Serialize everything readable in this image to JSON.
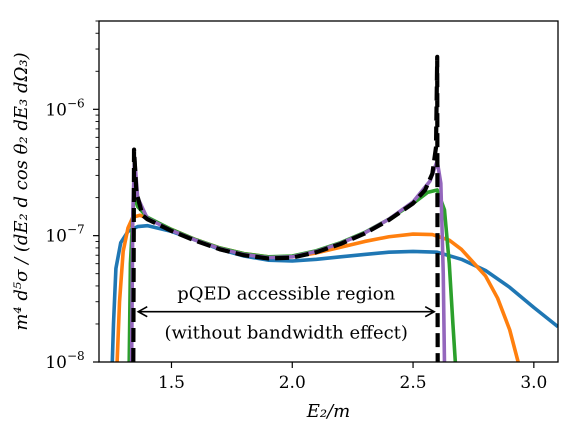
{
  "chart_data": {
    "type": "line",
    "title": "",
    "xlabel": "E₂/m",
    "ylabel": "m⁴ d⁵σ / (dE₂ d cos θ₂ dE₃ dΩ₃)",
    "xlim": [
      1.2,
      3.1
    ],
    "ylim": [
      1e-08,
      5e-06
    ],
    "yscale": "log",
    "grid": false,
    "x_ticks": [
      {
        "value": 1.5,
        "label": "1.5"
      },
      {
        "value": 2.0,
        "label": "2.0"
      },
      {
        "value": 2.5,
        "label": "2.5"
      },
      {
        "value": 3.0,
        "label": "3.0"
      }
    ],
    "y_ticks": [
      {
        "value": 1e-08,
        "base": "10",
        "exp": "−8"
      },
      {
        "value": 1e-07,
        "base": "10",
        "exp": "−7"
      },
      {
        "value": 1e-06,
        "base": "10",
        "exp": "−6"
      }
    ],
    "annotation": {
      "line1": "pQED accessible region",
      "line2": "(without bandwidth effect)",
      "x_from": 1.35,
      "x_to": 2.6,
      "y": 2.5e-08
    },
    "series": [
      {
        "color": "#1f77b4",
        "style": "solid",
        "points": [
          [
            1.255,
            1e-08
          ],
          [
            1.26,
            2e-08
          ],
          [
            1.27,
            5.5e-08
          ],
          [
            1.29,
            8.8e-08
          ],
          [
            1.32,
            1.08e-07
          ],
          [
            1.36,
            1.18e-07
          ],
          [
            1.4,
            1.2e-07
          ],
          [
            1.5,
            1.08e-07
          ],
          [
            1.6,
            9.2e-08
          ],
          [
            1.7,
            7.8e-08
          ],
          [
            1.8,
            6.9e-08
          ],
          [
            1.9,
            6.4e-08
          ],
          [
            2.0,
            6.3e-08
          ],
          [
            2.1,
            6.5e-08
          ],
          [
            2.2,
            6.8e-08
          ],
          [
            2.3,
            7.1e-08
          ],
          [
            2.4,
            7.4e-08
          ],
          [
            2.5,
            7.5e-08
          ],
          [
            2.6,
            7.4e-08
          ],
          [
            2.7,
            6.5e-08
          ],
          [
            2.8,
            5.3e-08
          ],
          [
            2.9,
            3.9e-08
          ],
          [
            3.0,
            2.7e-08
          ],
          [
            3.1,
            1.9e-08
          ]
        ]
      },
      {
        "color": "#ff7f0e",
        "style": "solid",
        "points": [
          [
            1.275,
            1e-08
          ],
          [
            1.285,
            3e-08
          ],
          [
            1.3,
            7.5e-08
          ],
          [
            1.32,
            1.15e-07
          ],
          [
            1.34,
            1.4e-07
          ],
          [
            1.37,
            1.45e-07
          ],
          [
            1.4,
            1.38e-07
          ],
          [
            1.5,
            1.12e-07
          ],
          [
            1.6,
            9.3e-08
          ],
          [
            1.7,
            8e-08
          ],
          [
            1.8,
            7.2e-08
          ],
          [
            1.9,
            6.8e-08
          ],
          [
            2.0,
            6.8e-08
          ],
          [
            2.1,
            7.3e-08
          ],
          [
            2.2,
            8.1e-08
          ],
          [
            2.3,
            9e-08
          ],
          [
            2.4,
            9.8e-08
          ],
          [
            2.5,
            1.03e-07
          ],
          [
            2.58,
            1.02e-07
          ],
          [
            2.65,
            9.2e-08
          ],
          [
            2.7,
            7.8e-08
          ],
          [
            2.8,
            4.8e-08
          ],
          [
            2.85,
            3.2e-08
          ],
          [
            2.9,
            1.8e-08
          ],
          [
            2.935,
            1e-08
          ]
        ]
      },
      {
        "color": "#2ca02c",
        "style": "solid",
        "points": [
          [
            1.325,
            1e-08
          ],
          [
            1.33,
            6e-08
          ],
          [
            1.345,
            2.2e-07
          ],
          [
            1.36,
            1.7e-07
          ],
          [
            1.4,
            1.4e-07
          ],
          [
            1.5,
            1.12e-07
          ],
          [
            1.6,
            9.3e-08
          ],
          [
            1.7,
            8e-08
          ],
          [
            1.8,
            7.2e-08
          ],
          [
            1.9,
            6.8e-08
          ],
          [
            2.0,
            6.9e-08
          ],
          [
            2.1,
            7.6e-08
          ],
          [
            2.2,
            8.8e-08
          ],
          [
            2.3,
            1.06e-07
          ],
          [
            2.4,
            1.35e-07
          ],
          [
            2.5,
            1.8e-07
          ],
          [
            2.56,
            2.2e-07
          ],
          [
            2.6,
            2.3e-07
          ],
          [
            2.63,
            1.6e-07
          ],
          [
            2.65,
            6e-08
          ],
          [
            2.665,
            2e-08
          ],
          [
            2.675,
            1e-08
          ]
        ]
      },
      {
        "color": "#9467bd",
        "style": "solid",
        "points": [
          [
            1.335,
            1e-08
          ],
          [
            1.34,
            1.5e-07
          ],
          [
            1.347,
            4.2e-07
          ],
          [
            1.36,
            2e-07
          ],
          [
            1.4,
            1.37e-07
          ],
          [
            1.5,
            1.1e-07
          ],
          [
            1.6,
            9.2e-08
          ],
          [
            1.7,
            7.9e-08
          ],
          [
            1.8,
            7.1e-08
          ],
          [
            1.9,
            6.7e-08
          ],
          [
            2.0,
            6.8e-08
          ],
          [
            2.1,
            7.5e-08
          ],
          [
            2.2,
            8.7e-08
          ],
          [
            2.3,
            1.05e-07
          ],
          [
            2.4,
            1.35e-07
          ],
          [
            2.5,
            1.85e-07
          ],
          [
            2.57,
            2.7e-07
          ],
          [
            2.6,
            3.9e-07
          ],
          [
            2.615,
            2.6e-07
          ],
          [
            2.625,
            5e-08
          ],
          [
            2.63,
            1e-08
          ]
        ]
      },
      {
        "color": "#000000",
        "style": "dashed",
        "points": [
          [
            1.342,
            1e-08
          ],
          [
            1.345,
            4.8e-07
          ],
          [
            1.355,
            2.2e-07
          ],
          [
            1.38,
            1.45e-07
          ],
          [
            1.4,
            1.35e-07
          ],
          [
            1.5,
            1.09e-07
          ],
          [
            1.6,
            9.1e-08
          ],
          [
            1.7,
            7.8e-08
          ],
          [
            1.8,
            7e-08
          ],
          [
            1.9,
            6.6e-08
          ],
          [
            2.0,
            6.7e-08
          ],
          [
            2.1,
            7.4e-08
          ],
          [
            2.2,
            8.6e-08
          ],
          [
            2.3,
            1.04e-07
          ],
          [
            2.4,
            1.33e-07
          ],
          [
            2.5,
            1.8e-07
          ],
          [
            2.55,
            2.3e-07
          ],
          [
            2.58,
            3.1e-07
          ],
          [
            2.595,
            5e-07
          ],
          [
            2.6,
            2.6e-06
          ],
          [
            2.602,
            1e-08
          ]
        ]
      }
    ]
  }
}
